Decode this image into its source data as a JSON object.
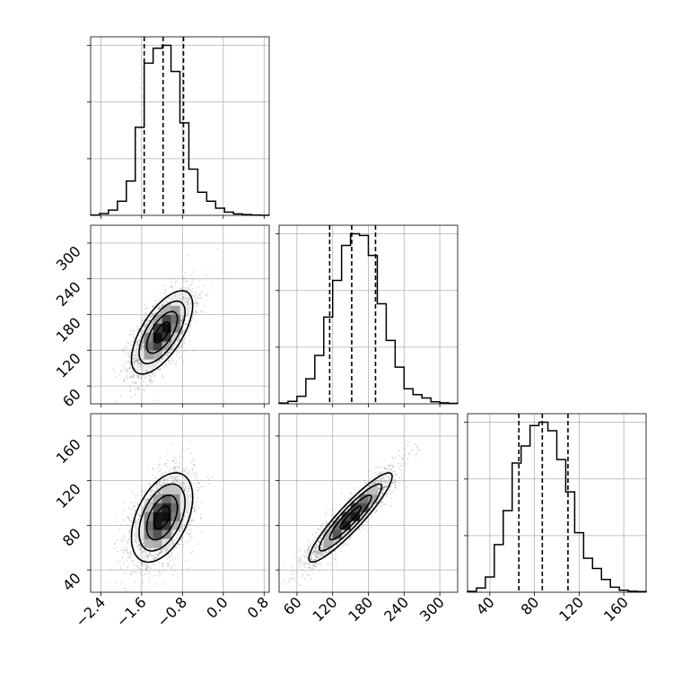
{
  "chart_data": {
    "type": "corner",
    "grid": true,
    "parameters": [
      {
        "id": "p0",
        "range": [
          -2.6,
          0.9
        ],
        "ticks": [
          -2.4,
          -1.6,
          -0.8,
          0.0,
          0.8
        ],
        "tick_labels": [
          "−2.4",
          "−1.6",
          "−0.8",
          "0.0",
          "0.8"
        ],
        "mean": -1.2,
        "sd": 0.3
      },
      {
        "id": "p1",
        "range": [
          30,
          330
        ],
        "ticks": [
          60,
          120,
          180,
          240,
          300
        ],
        "tick_labels": [
          "60",
          "120",
          "180",
          "240",
          "300"
        ],
        "mean": 150,
        "sd": 35
      },
      {
        "id": "p2",
        "range": [
          20,
          180
        ],
        "ticks": [
          40,
          80,
          120,
          160
        ],
        "tick_labels": [
          "40",
          "80",
          "120",
          "160"
        ],
        "mean": 87,
        "sd": 20
      }
    ],
    "correlations": {
      "p0_p1": 0.65,
      "p0_p2": 0.45,
      "p1_p2": 0.92
    },
    "histograms": [
      {
        "param": "p0",
        "bin_edges": [
          -2.6,
          -2.425,
          -2.25,
          -2.075,
          -1.9,
          -1.725,
          -1.55,
          -1.375,
          -1.2,
          -1.025,
          -0.85,
          -0.675,
          -0.5,
          -0.325,
          -0.15,
          0.025,
          0.2,
          0.375,
          0.55,
          0.725,
          0.9
        ],
        "counts": [
          2,
          12,
          35,
          95,
          230,
          590,
          1020,
          1120,
          1140,
          965,
          620,
          310,
          155,
          95,
          48,
          22,
          10,
          5,
          2,
          1
        ],
        "quantiles": [
          -1.55,
          -1.18,
          -0.78
        ]
      },
      {
        "param": "p1",
        "bin_edges": [
          30,
          45,
          60,
          75,
          90,
          105,
          120,
          135,
          150,
          165,
          180,
          195,
          210,
          225,
          240,
          255,
          270,
          285,
          300,
          315,
          330
        ],
        "counts": [
          5,
          15,
          45,
          150,
          290,
          520,
          740,
          950,
          1020,
          1010,
          890,
          600,
          380,
          220,
          90,
          55,
          35,
          12,
          6,
          3
        ],
        "quantiles": [
          115,
          152,
          192
        ]
      },
      {
        "param": "p2",
        "bin_edges": [
          20,
          28,
          36,
          44,
          52,
          60,
          68,
          76,
          84,
          92,
          100,
          108,
          116,
          124,
          132,
          140,
          148,
          156,
          164,
          172,
          180
        ],
        "counts": [
          5,
          25,
          90,
          280,
          480,
          760,
          860,
          980,
          1000,
          950,
          780,
          590,
          350,
          200,
          140,
          75,
          30,
          12,
          6,
          4
        ],
        "quantiles": [
          66,
          87,
          110
        ]
      }
    ]
  }
}
